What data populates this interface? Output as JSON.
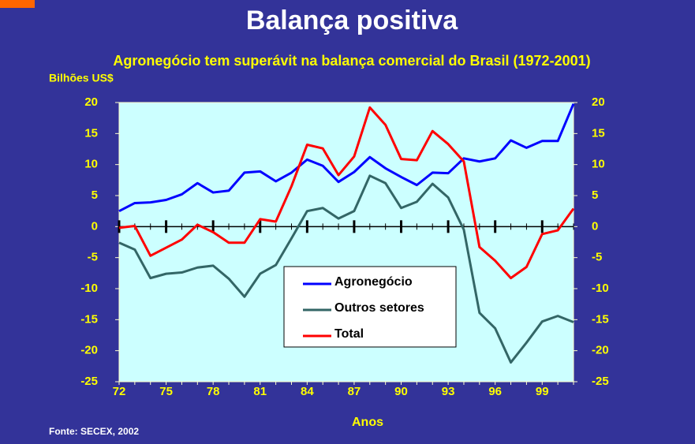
{
  "chart_data": {
    "type": "line",
    "title": "Balança positiva",
    "subtitle": "Agronegócio tem superávit na balança comercial do Brasil (1972-2001)",
    "y_label": "Bilhões US$",
    "x_label": "Anos",
    "source": "Fonte: SECEX, 2002",
    "categories": [
      "72",
      null,
      null,
      "75",
      null,
      null,
      "78",
      null,
      null,
      "81",
      null,
      null,
      "84",
      null,
      null,
      "87",
      null,
      null,
      "90",
      null,
      null,
      "93",
      null,
      null,
      "96",
      null,
      null,
      "99",
      null,
      null
    ],
    "series": [
      {
        "name": "Agronegócio",
        "color": "#0000ff",
        "values": [
          2.5,
          3.8,
          3.9,
          4.3,
          5.2,
          7.0,
          5.5,
          5.8,
          8.7,
          8.9,
          7.3,
          8.7,
          10.8,
          9.8,
          7.2,
          8.8,
          11.2,
          9.4,
          8.0,
          6.7,
          8.7,
          8.6,
          11.0,
          10.5,
          11.0,
          13.9,
          12.7,
          13.8,
          13.8,
          19.8
        ]
      },
      {
        "name": "Outros setores",
        "color": "#336666",
        "values": [
          -2.6,
          -3.7,
          -8.3,
          -7.6,
          -7.4,
          -6.6,
          -6.3,
          -8.4,
          -11.3,
          -7.6,
          -6.2,
          -1.9,
          2.5,
          3.0,
          1.3,
          2.5,
          8.2,
          7.0,
          3.0,
          4.0,
          6.9,
          4.7,
          -0.5,
          -13.9,
          -16.4,
          -21.9,
          -18.7,
          -15.3,
          -14.4,
          -15.4
        ]
      },
      {
        "name": "Total",
        "color": "#ff0000",
        "values": [
          -0.2,
          0.1,
          -4.7,
          -3.4,
          -2.1,
          0.3,
          -0.9,
          -2.6,
          -2.6,
          1.2,
          0.8,
          6.5,
          13.2,
          12.6,
          8.3,
          11.3,
          19.2,
          16.4,
          10.9,
          10.7,
          15.4,
          13.3,
          10.5,
          -3.3,
          -5.5,
          -8.3,
          -6.5,
          -1.2,
          -0.6,
          2.9
        ]
      }
    ],
    "ylim": [
      -25,
      20
    ],
    "yticks": [
      -25,
      -20,
      -15,
      -10,
      -5,
      0,
      5,
      10,
      15,
      20
    ],
    "y2lim": [
      -25,
      20
    ],
    "y2ticks": [
      -25,
      -20,
      -15,
      -10,
      -5,
      0,
      5,
      10,
      15,
      20
    ],
    "legend": "center"
  }
}
